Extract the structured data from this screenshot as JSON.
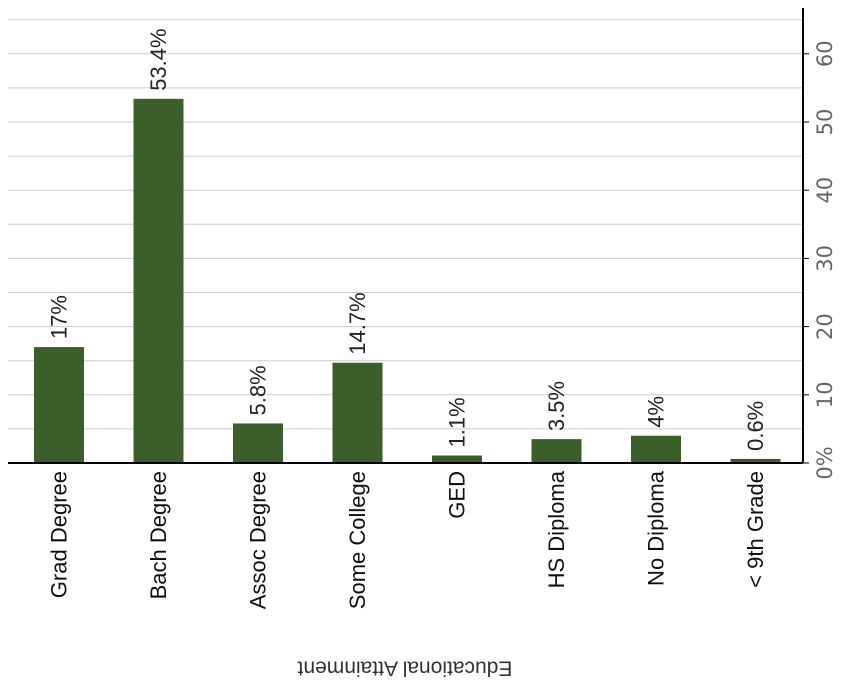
{
  "chart_data": {
    "type": "bar",
    "xlabel": "Educational Attainment",
    "ylabel": "",
    "categories": [
      "Grad Degree",
      "Bach Degree",
      "Assoc Degree",
      "Some College",
      "GED",
      "HS Diploma",
      "No Diploma",
      "< 9th Grade"
    ],
    "values": [
      17,
      53.4,
      5.8,
      14.7,
      1.1,
      3.5,
      4,
      0.6
    ],
    "data_labels": [
      "17%",
      "53.4%",
      "5.8%",
      "14.7%",
      "1.1%",
      "3.5%",
      "4%",
      "0.6%"
    ],
    "ylim": [
      0,
      65
    ],
    "yticks": [
      0,
      10,
      20,
      30,
      40,
      50,
      60
    ],
    "ytick_labels": [
      "0%",
      "10",
      "20",
      "30",
      "40",
      "50",
      "60"
    ],
    "grid": true,
    "bar_color": "#3b5e2b",
    "grid_color": "#cccccc",
    "axis_color": "#000000"
  }
}
